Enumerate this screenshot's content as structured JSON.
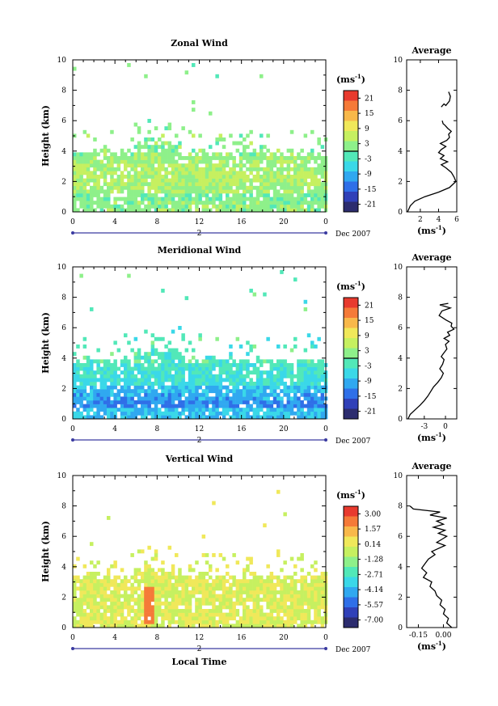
{
  "figure": {
    "date_label": "Dec 2007",
    "time_axis_label": "Local Time",
    "day_marker": "2"
  },
  "chart_data": [
    {
      "type": "heatmap",
      "title": "Zonal Wind",
      "ylabel": "Height (km)",
      "xlabel": "Local Time",
      "xlim": [
        0,
        24
      ],
      "ylim": [
        0,
        10
      ],
      "xticks": [
        "0",
        "4",
        "8",
        "12",
        "16",
        "20",
        "0"
      ],
      "yticks": [
        "0",
        "2",
        "4",
        "6",
        "8",
        "10"
      ],
      "colorbar": {
        "unit_base": "(ms",
        "unit_exp": "-1",
        "unit_close": ")",
        "ticks": [
          "21",
          "15",
          "9",
          "3",
          "-3",
          "-9",
          "-15",
          "-21"
        ],
        "range": [
          -24,
          24
        ],
        "zero_line": true
      },
      "coverage_top_km": 4.0,
      "mean_values_by_height": [
        {
          "height_km": 0.5,
          "value": 2
        },
        {
          "height_km": 1.0,
          "value": 1
        },
        {
          "height_km": 1.5,
          "value": 3
        },
        {
          "height_km": 2.0,
          "value": 5
        },
        {
          "height_km": 2.5,
          "value": 5
        },
        {
          "height_km": 3.0,
          "value": 4
        },
        {
          "height_km": 3.5,
          "value": 3
        },
        {
          "height_km": 4.0,
          "value": 2
        }
      ],
      "average_profile": {
        "title": "Average",
        "xlabel_base": "(ms",
        "xlabel_exp": "-1",
        "xlabel_close": ")",
        "xticks": [
          "2",
          "4",
          "6"
        ],
        "xlim": [
          0.5,
          6
        ],
        "ylim": [
          0,
          10
        ],
        "yticks": [
          "0",
          "2",
          "4",
          "6",
          "8",
          "10"
        ],
        "points": [
          [
            0.6,
            0.0
          ],
          [
            0.9,
            0.4
          ],
          [
            1.4,
            0.7
          ],
          [
            2.5,
            1.0
          ],
          [
            4.0,
            1.3
          ],
          [
            5.2,
            1.6
          ],
          [
            5.9,
            2.0
          ],
          [
            5.7,
            2.3
          ],
          [
            5.4,
            2.6
          ],
          [
            4.8,
            2.9
          ],
          [
            4.3,
            3.1
          ],
          [
            5.0,
            3.3
          ],
          [
            4.2,
            3.5
          ],
          [
            4.6,
            3.7
          ],
          [
            4.0,
            3.9
          ],
          [
            4.3,
            4.1
          ],
          [
            4.8,
            4.3
          ],
          [
            4.2,
            4.5
          ],
          [
            4.9,
            4.7
          ],
          [
            5.2,
            4.9
          ],
          [
            5.1,
            5.1
          ],
          [
            5.4,
            5.3
          ],
          [
            5.0,
            5.5
          ],
          [
            4.7,
            5.7
          ],
          [
            4.5,
            5.8
          ],
          [
            4.4,
            6.0
          ]
        ],
        "points_upper": [
          [
            4.3,
            6.9
          ],
          [
            4.6,
            7.1
          ],
          [
            4.8,
            7.0
          ],
          [
            5.2,
            7.3
          ],
          [
            5.3,
            7.6
          ],
          [
            5.1,
            7.9
          ]
        ]
      }
    },
    {
      "type": "heatmap",
      "title": "Meridional Wind",
      "ylabel": "Height (km)",
      "xlabel": "Local Time",
      "xlim": [
        0,
        24
      ],
      "ylim": [
        0,
        10
      ],
      "xticks": [
        "0",
        "4",
        "8",
        "12",
        "16",
        "20",
        "0"
      ],
      "yticks": [
        "0",
        "2",
        "4",
        "6",
        "8",
        "10"
      ],
      "colorbar": {
        "unit_base": "(ms",
        "unit_exp": "-1",
        "unit_close": ")",
        "ticks": [
          "21",
          "15",
          "9",
          "3",
          "-3",
          "-9",
          "-15",
          "-21"
        ],
        "range": [
          -24,
          24
        ],
        "zero_line": true
      },
      "coverage_top_km": 4.0,
      "mean_values_by_height": [
        {
          "height_km": 0.5,
          "value": -8
        },
        {
          "height_km": 1.0,
          "value": -12
        },
        {
          "height_km": 1.5,
          "value": -10
        },
        {
          "height_km": 2.0,
          "value": -8
        },
        {
          "height_km": 2.5,
          "value": -5
        },
        {
          "height_km": 3.0,
          "value": -4
        },
        {
          "height_km": 3.5,
          "value": -3
        },
        {
          "height_km": 4.0,
          "value": -2
        }
      ],
      "average_profile": {
        "title": "Average",
        "xlabel_base": "(ms",
        "xlabel_exp": "-1",
        "xlabel_close": ")",
        "xticks": [
          "-3",
          "0"
        ],
        "xlim": [
          -5.5,
          1.6
        ],
        "ylim": [
          0,
          10
        ],
        "yticks": [
          "0",
          "2",
          "4",
          "6",
          "8",
          "10"
        ],
        "points": [
          [
            -5.3,
            0.0
          ],
          [
            -5.0,
            0.3
          ],
          [
            -4.3,
            0.6
          ],
          [
            -3.6,
            0.9
          ],
          [
            -3.0,
            1.2
          ],
          [
            -2.5,
            1.5
          ],
          [
            -2.1,
            1.8
          ],
          [
            -1.7,
            2.1
          ],
          [
            -1.1,
            2.4
          ],
          [
            -0.6,
            2.7
          ],
          [
            -0.3,
            3.0
          ],
          [
            -0.8,
            3.3
          ],
          [
            -0.4,
            3.6
          ],
          [
            -0.2,
            3.9
          ],
          [
            -0.6,
            4.1
          ],
          [
            -0.3,
            4.3
          ],
          [
            0.2,
            4.6
          ],
          [
            0.0,
            4.9
          ],
          [
            0.5,
            5.1
          ],
          [
            -0.2,
            5.3
          ],
          [
            0.6,
            5.5
          ],
          [
            0.3,
            5.7
          ],
          [
            1.2,
            5.9
          ],
          [
            0.8,
            6.1
          ],
          [
            0.9,
            6.3
          ],
          [
            0.1,
            6.5
          ],
          [
            -0.9,
            6.8
          ],
          [
            -0.5,
            7.1
          ],
          [
            0.7,
            7.3
          ],
          [
            -0.8,
            7.5
          ],
          [
            0.4,
            7.6
          ]
        ],
        "points_upper": []
      }
    },
    {
      "type": "heatmap",
      "title": "Vertical Wind",
      "ylabel": "Height (km)",
      "xlabel": "Local Time",
      "xlim": [
        0,
        24
      ],
      "ylim": [
        0,
        10
      ],
      "xticks": [
        "0",
        "4",
        "8",
        "12",
        "16",
        "20",
        "0"
      ],
      "yticks": [
        "0",
        "2",
        "4",
        "6",
        "8",
        "10"
      ],
      "colorbar": {
        "unit_base": "(ms",
        "unit_exp": "-1",
        "unit_close": ")",
        "ticks": [
          "3.00",
          "1.57",
          "0.14",
          "-1.28",
          "-2.71",
          "-4.14",
          "-5.57",
          "-7.00"
        ],
        "range": [
          -8.0,
          4.0
        ],
        "zero_line": false
      },
      "coverage_top_km": 3.5,
      "mean_values_by_height": [
        {
          "height_km": 0.5,
          "value": 0.0
        },
        {
          "height_km": 1.5,
          "value": 0.0
        },
        {
          "height_km": 2.5,
          "value": 0.0
        },
        {
          "height_km": 3.5,
          "value": 0.0
        }
      ],
      "average_profile": {
        "title": "Average",
        "xlabel_base": "(ms",
        "xlabel_exp": "-1",
        "xlabel_close": ")",
        "xticks": [
          "-0.15",
          "0.00"
        ],
        "xlim": [
          -0.22,
          0.08
        ],
        "ylim": [
          0,
          10
        ],
        "yticks": [
          "0",
          "2",
          "4",
          "6",
          "8",
          "10"
        ],
        "points": [
          [
            0.05,
            0.0
          ],
          [
            0.02,
            0.3
          ],
          [
            0.03,
            0.6
          ],
          [
            0.0,
            0.9
          ],
          [
            0.01,
            1.2
          ],
          [
            -0.02,
            1.5
          ],
          [
            -0.01,
            1.8
          ],
          [
            -0.04,
            2.1
          ],
          [
            -0.05,
            2.4
          ],
          [
            -0.08,
            2.7
          ],
          [
            -0.07,
            3.0
          ],
          [
            -0.12,
            3.3
          ],
          [
            -0.1,
            3.6
          ],
          [
            -0.13,
            3.9
          ],
          [
            -0.11,
            4.2
          ],
          [
            -0.09,
            4.5
          ],
          [
            -0.05,
            4.8
          ],
          [
            -0.07,
            5.0
          ],
          [
            -0.03,
            5.2
          ],
          [
            0.01,
            5.4
          ],
          [
            -0.04,
            5.6
          ],
          [
            -0.01,
            5.8
          ],
          [
            0.02,
            6.0
          ],
          [
            -0.03,
            6.2
          ],
          [
            0.01,
            6.4
          ],
          [
            -0.06,
            6.6
          ],
          [
            0.0,
            6.8
          ],
          [
            -0.04,
            7.0
          ],
          [
            0.02,
            7.2
          ],
          [
            -0.08,
            7.4
          ],
          [
            -0.02,
            7.6
          ],
          [
            -0.18,
            7.8
          ],
          [
            -0.2,
            8.0
          ]
        ],
        "points_upper": []
      }
    }
  ],
  "colors": {
    "colormap": [
      "#2c2c6e",
      "#3040b8",
      "#2f6fe8",
      "#30a8f0",
      "#3ad8e8",
      "#52e8b8",
      "#8ef08a",
      "#c6f060",
      "#f0e85a",
      "#f8b84a",
      "#f57a38",
      "#e83a2e"
    ],
    "axis": "#000000",
    "profile_line": "#000000",
    "time_bar": "#3a3aa0"
  }
}
